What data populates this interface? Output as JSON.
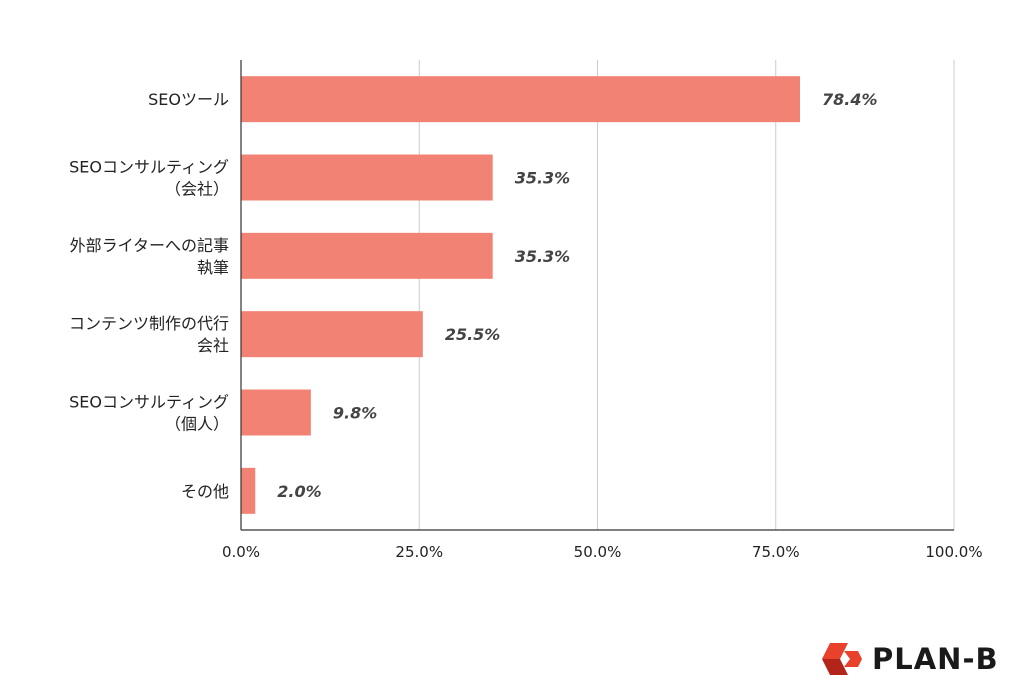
{
  "chart_data": {
    "type": "bar",
    "orientation": "horizontal",
    "categories": [
      [
        "SEOツール"
      ],
      [
        "SEOコンサルティング",
        "（会社）"
      ],
      [
        "外部ライターへの記事",
        "執筆"
      ],
      [
        "コンテンツ制作の代行",
        "会社"
      ],
      [
        "SEOコンサルティング",
        "（個人）"
      ],
      [
        "その他"
      ]
    ],
    "values": [
      78.4,
      35.3,
      35.3,
      25.5,
      9.8,
      2.0
    ],
    "data_labels": [
      "78.4%",
      "35.3%",
      "35.3%",
      "25.5%",
      "9.8%",
      "2.0%"
    ],
    "x_ticks": [
      "0.0%",
      "25.0%",
      "50.0%",
      "75.0%",
      "100.0%"
    ],
    "xlim": [
      0,
      100
    ],
    "grid": true,
    "legend": "none",
    "bar_color": "#f28374",
    "title": "",
    "xlabel": "",
    "ylabel": ""
  },
  "brand": {
    "name": "PLAN-B",
    "accent_color": "#e8412c",
    "accent_dark": "#b3241a"
  }
}
